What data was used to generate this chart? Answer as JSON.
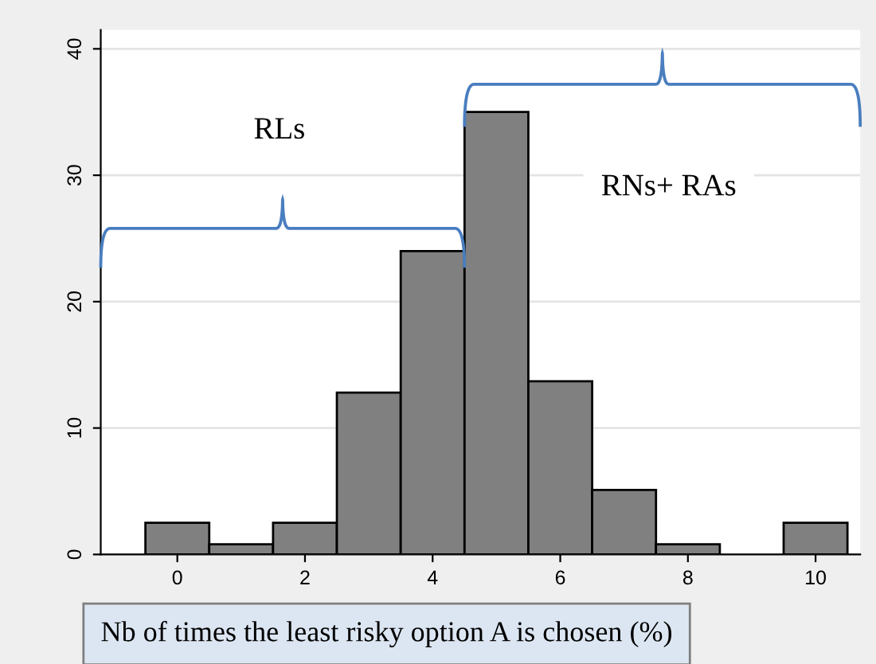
{
  "chart_data": {
    "type": "histogram",
    "xlabel": "Nb of times the least risky option A is chosen (%)",
    "bins": [
      -0.5,
      0.5,
      1.5,
      2.5,
      3.5,
      4.5,
      5.5,
      6.5,
      7.5,
      8.5,
      9.5,
      10.5
    ],
    "values": [
      2.5,
      0.8,
      2.5,
      12.8,
      24,
      35,
      13.7,
      5.1,
      0.8,
      0,
      2.5
    ],
    "color": "#808080",
    "xlim": [
      -1.2,
      10.7
    ],
    "ylim": [
      0,
      41.5
    ],
    "xticks": [
      0,
      2,
      4,
      6,
      8,
      10
    ],
    "yticks": [
      0,
      10,
      20,
      30,
      40
    ],
    "grid": "y",
    "annotations": [
      "RLs",
      "RNs+ RAs"
    ]
  }
}
